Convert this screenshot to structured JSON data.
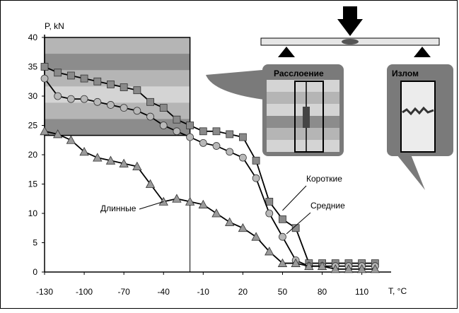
{
  "chart_data": {
    "type": "line",
    "xlabel": "T, °C",
    "ylabel": "P, kN",
    "xlim": [
      -130,
      130
    ],
    "ylim": [
      0,
      40
    ],
    "x_ticks": [
      -130,
      -100,
      -70,
      -40,
      -10,
      20,
      50,
      80,
      110
    ],
    "y_ticks": [
      0,
      5,
      10,
      15,
      20,
      25,
      30,
      35,
      40
    ],
    "series": [
      {
        "name": "Короткие",
        "marker": "square",
        "x": [
          -130,
          -120,
          -110,
          -100,
          -90,
          -80,
          -70,
          -60,
          -50,
          -40,
          -30,
          -20,
          -10,
          0,
          10,
          20,
          30,
          40,
          50,
          60,
          70,
          80,
          90,
          100,
          110,
          120
        ],
        "y": [
          35,
          34,
          33.5,
          33,
          32.5,
          32,
          31.5,
          31,
          29,
          28,
          26,
          25,
          24,
          24,
          23.5,
          23,
          19,
          12,
          9,
          7.5,
          1.5,
          1.5,
          1.5,
          1.5,
          1.5,
          1.5
        ]
      },
      {
        "name": "Средние",
        "marker": "circle",
        "x": [
          -130,
          -120,
          -110,
          -100,
          -90,
          -80,
          -70,
          -60,
          -50,
          -40,
          -30,
          -20,
          -10,
          0,
          10,
          20,
          30,
          40,
          50,
          60,
          70,
          80,
          90,
          100,
          110,
          120
        ],
        "y": [
          33,
          30,
          29.5,
          29.5,
          29,
          28.5,
          28,
          27.5,
          26.5,
          25,
          24,
          23,
          22,
          21.5,
          20.5,
          19.5,
          16,
          10,
          6,
          2,
          1,
          1,
          1,
          1,
          1,
          1
        ]
      },
      {
        "name": "Длинные",
        "marker": "triangle",
        "x": [
          -130,
          -120,
          -110,
          -100,
          -90,
          -80,
          -70,
          -60,
          -50,
          -40,
          -30,
          -20,
          -10,
          0,
          10,
          20,
          30,
          40,
          50,
          60,
          70,
          80,
          90,
          100,
          110,
          120
        ],
        "y": [
          24,
          23.5,
          22.5,
          20.5,
          19.5,
          19,
          18.5,
          18,
          15,
          12,
          12.5,
          12,
          11.5,
          10,
          8.5,
          7.5,
          6,
          3.5,
          1.5,
          1.5,
          1,
          1,
          0.5,
          0.5,
          0.5,
          0.5
        ]
      }
    ],
    "annotations": [
      "Расслоение",
      "Излом"
    ]
  },
  "colors": {
    "series": [
      "#8a8a8a",
      "#b8b8b8",
      "#9a9a9a"
    ],
    "band_dark": "#8c8c8c",
    "band_mid": "#b5b5b5",
    "band_light": "#d4d4d4",
    "callout_dark": "#7a7a7a"
  }
}
